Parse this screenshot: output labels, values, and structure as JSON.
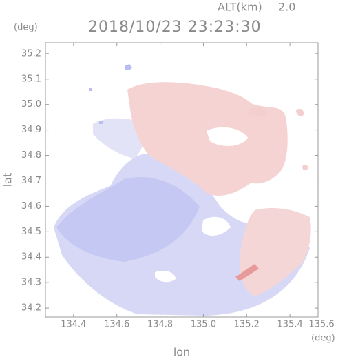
{
  "header": {
    "altitude_label": "ALT(km)",
    "altitude": "2.0",
    "time": "2018/10/23 23:23:30",
    "y_unit": "(deg)",
    "x_unit": "(deg)"
  },
  "axes": {
    "x_label": "lon",
    "y_label": "lat",
    "xlim": [
      134.27,
      135.53
    ],
    "ylim": [
      34.165,
      35.243
    ],
    "xticks": [
      134.4,
      134.6,
      134.8,
      {
        "value": 135,
        "label": "135.0"
      },
      135.2,
      135.4,
      135.6
    ],
    "yticks": [
      34.2,
      34.3,
      34.4,
      34.5,
      34.6,
      34.7,
      34.8,
      34.9,
      {
        "value": 35,
        "label": "35.0"
      },
      35.1,
      35.2
    ]
  }
}
